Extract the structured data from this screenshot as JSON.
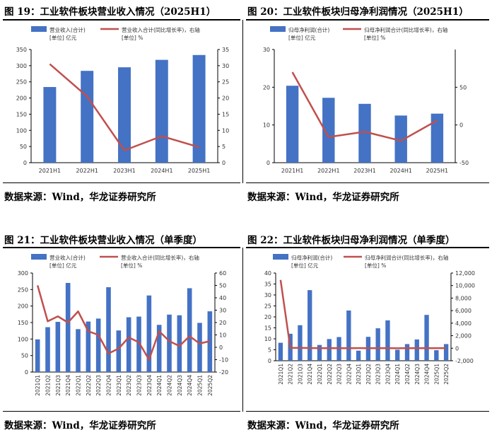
{
  "colors": {
    "bar": "#4472C4",
    "line": "#C0504D",
    "axis": "#000000",
    "text": "#333333"
  },
  "panels": [
    {
      "title": "图 19：工业软件板块营业收入情况（2025H1）",
      "source": "数据来源：Wind，华龙证券研究所",
      "chart_data": {
        "type": "bar",
        "categories": [
          "2021H1",
          "2022H1",
          "2023H1",
          "2024H1",
          "2025H1"
        ],
        "series": [
          {
            "name": "营业收入(合计)",
            "unit": "[单位] 亿元",
            "kind": "bar",
            "axis": "left",
            "values": [
              234,
              284,
              295,
              318,
              333
            ]
          },
          {
            "name": "营业收入合计(同比增长率)，右轴",
            "unit": "[单位] %",
            "kind": "line",
            "axis": "right",
            "values": [
              30.5,
              20.5,
              3.8,
              8.2,
              4.8
            ]
          }
        ],
        "ylim": [
          0,
          350
        ],
        "yticks": [
          0,
          50,
          100,
          150,
          200,
          250,
          300,
          350
        ],
        "y2lim": [
          0,
          35
        ],
        "y2ticks": [
          0,
          5,
          10,
          15,
          20,
          25,
          30,
          35
        ],
        "xrotate": false
      }
    },
    {
      "title": "图 20：工业软件板块归母净利润情况（2025H1）",
      "source": "数据来源：Wind，华龙证券研究所",
      "chart_data": {
        "type": "bar",
        "categories": [
          "2021H1",
          "2022H1",
          "2023H1",
          "2024H1",
          "2025H1"
        ],
        "series": [
          {
            "name": "归母净利润(合计)",
            "unit": "[单位] 亿元",
            "kind": "bar",
            "axis": "left",
            "values": [
              20.4,
              17.2,
              15.6,
              12.5,
              13.0
            ]
          },
          {
            "name": "归母净利润合计(同比增长率)，右轴",
            "unit": "[单位] %",
            "kind": "line",
            "axis": "right",
            "values": [
              70,
              -16,
              -9,
              -21,
              6
            ]
          }
        ],
        "ylim": [
          0,
          30
        ],
        "yticks": [
          0,
          10,
          20,
          30
        ],
        "y2lim": [
          -50,
          100
        ],
        "y2ticks": [
          -50,
          0,
          50
        ],
        "xrotate": false
      }
    },
    {
      "title": "图 21：工业软件板块营业收入情况（单季度）",
      "source": "数据来源：Wind，华龙证券研究所",
      "chart_data": {
        "type": "bar",
        "categories": [
          "2021Q1",
          "2021Q2",
          "2021Q3",
          "2021Q4",
          "2022Q1",
          "2022Q2",
          "2022Q3",
          "2022Q4",
          "2023Q1",
          "2023Q2",
          "2023Q3",
          "2023Q4",
          "2024Q1",
          "2024Q2",
          "2024Q3",
          "2024Q4",
          "2025Q1",
          "2025Q2"
        ],
        "series": [
          {
            "name": "营业收入(合计)",
            "unit": "[单位] 亿元",
            "kind": "bar",
            "axis": "left",
            "values": [
              99,
              136,
              152,
              270,
              130,
              153,
              162,
              257,
              126,
              166,
              168,
              232,
              143,
              174,
              172,
              254,
              149,
              184
            ]
          },
          {
            "name": "营业收入合计(同比增长率)，右轴",
            "unit": "[单位] %",
            "kind": "line",
            "axis": "right",
            "values": [
              50,
              21,
              25,
              20,
              29,
              13,
              10,
              -5,
              -1,
              8,
              4,
              -10,
              13,
              5,
              1,
              9,
              3,
              5
            ]
          }
        ],
        "ylim": [
          0,
          300
        ],
        "yticks": [
          0,
          50,
          100,
          150,
          200,
          250,
          300
        ],
        "y2lim": [
          -20,
          60
        ],
        "y2ticks": [
          -20,
          -10,
          0,
          10,
          20,
          30,
          40,
          50,
          60
        ],
        "xrotate": true
      }
    },
    {
      "title": "图 22：工业软件板块归母净利润情况（单季度）",
      "source": "数据来源：Wind，华龙证券研究所",
      "chart_data": {
        "type": "bar",
        "categories": [
          "2021Q1",
          "2021Q2",
          "2021Q3",
          "2021Q4",
          "2022Q1",
          "2022Q2",
          "2022Q3",
          "2022Q4",
          "2023Q1",
          "2023Q2",
          "2023Q3",
          "2023Q4",
          "2024Q1",
          "2024Q2",
          "2024Q3",
          "2024Q4",
          "2025Q1",
          "2025Q2"
        ],
        "series": [
          {
            "name": "归母净利润(合计)",
            "unit": "[单位] 亿元",
            "kind": "bar",
            "axis": "left",
            "values": [
              8.2,
              12.3,
              16.2,
              32.2,
              7.2,
              9.9,
              10.8,
              22.9,
              4.6,
              10.9,
              14.8,
              18.4,
              5.0,
              7.6,
              9.7,
              20.9,
              4.8,
              7.6
            ]
          },
          {
            "name": "归母净利润合计(同比增长率)，右轴",
            "unit": "[单位] %",
            "kind": "line",
            "axis": "right",
            "values": [
              10900,
              50,
              40,
              30,
              0,
              20,
              0,
              0,
              20,
              10,
              0,
              20,
              -10,
              20,
              0,
              20,
              0,
              20
            ]
          }
        ],
        "ylim": [
          0,
          40
        ],
        "yticks": [
          0,
          5,
          10,
          15,
          20,
          25,
          30,
          35,
          40
        ],
        "y2lim": [
          -2000,
          12000
        ],
        "y2ticks": [
          -2000,
          0,
          2000,
          4000,
          6000,
          8000,
          10000,
          12000
        ],
        "y2format": "thousands",
        "xrotate": true
      }
    }
  ]
}
